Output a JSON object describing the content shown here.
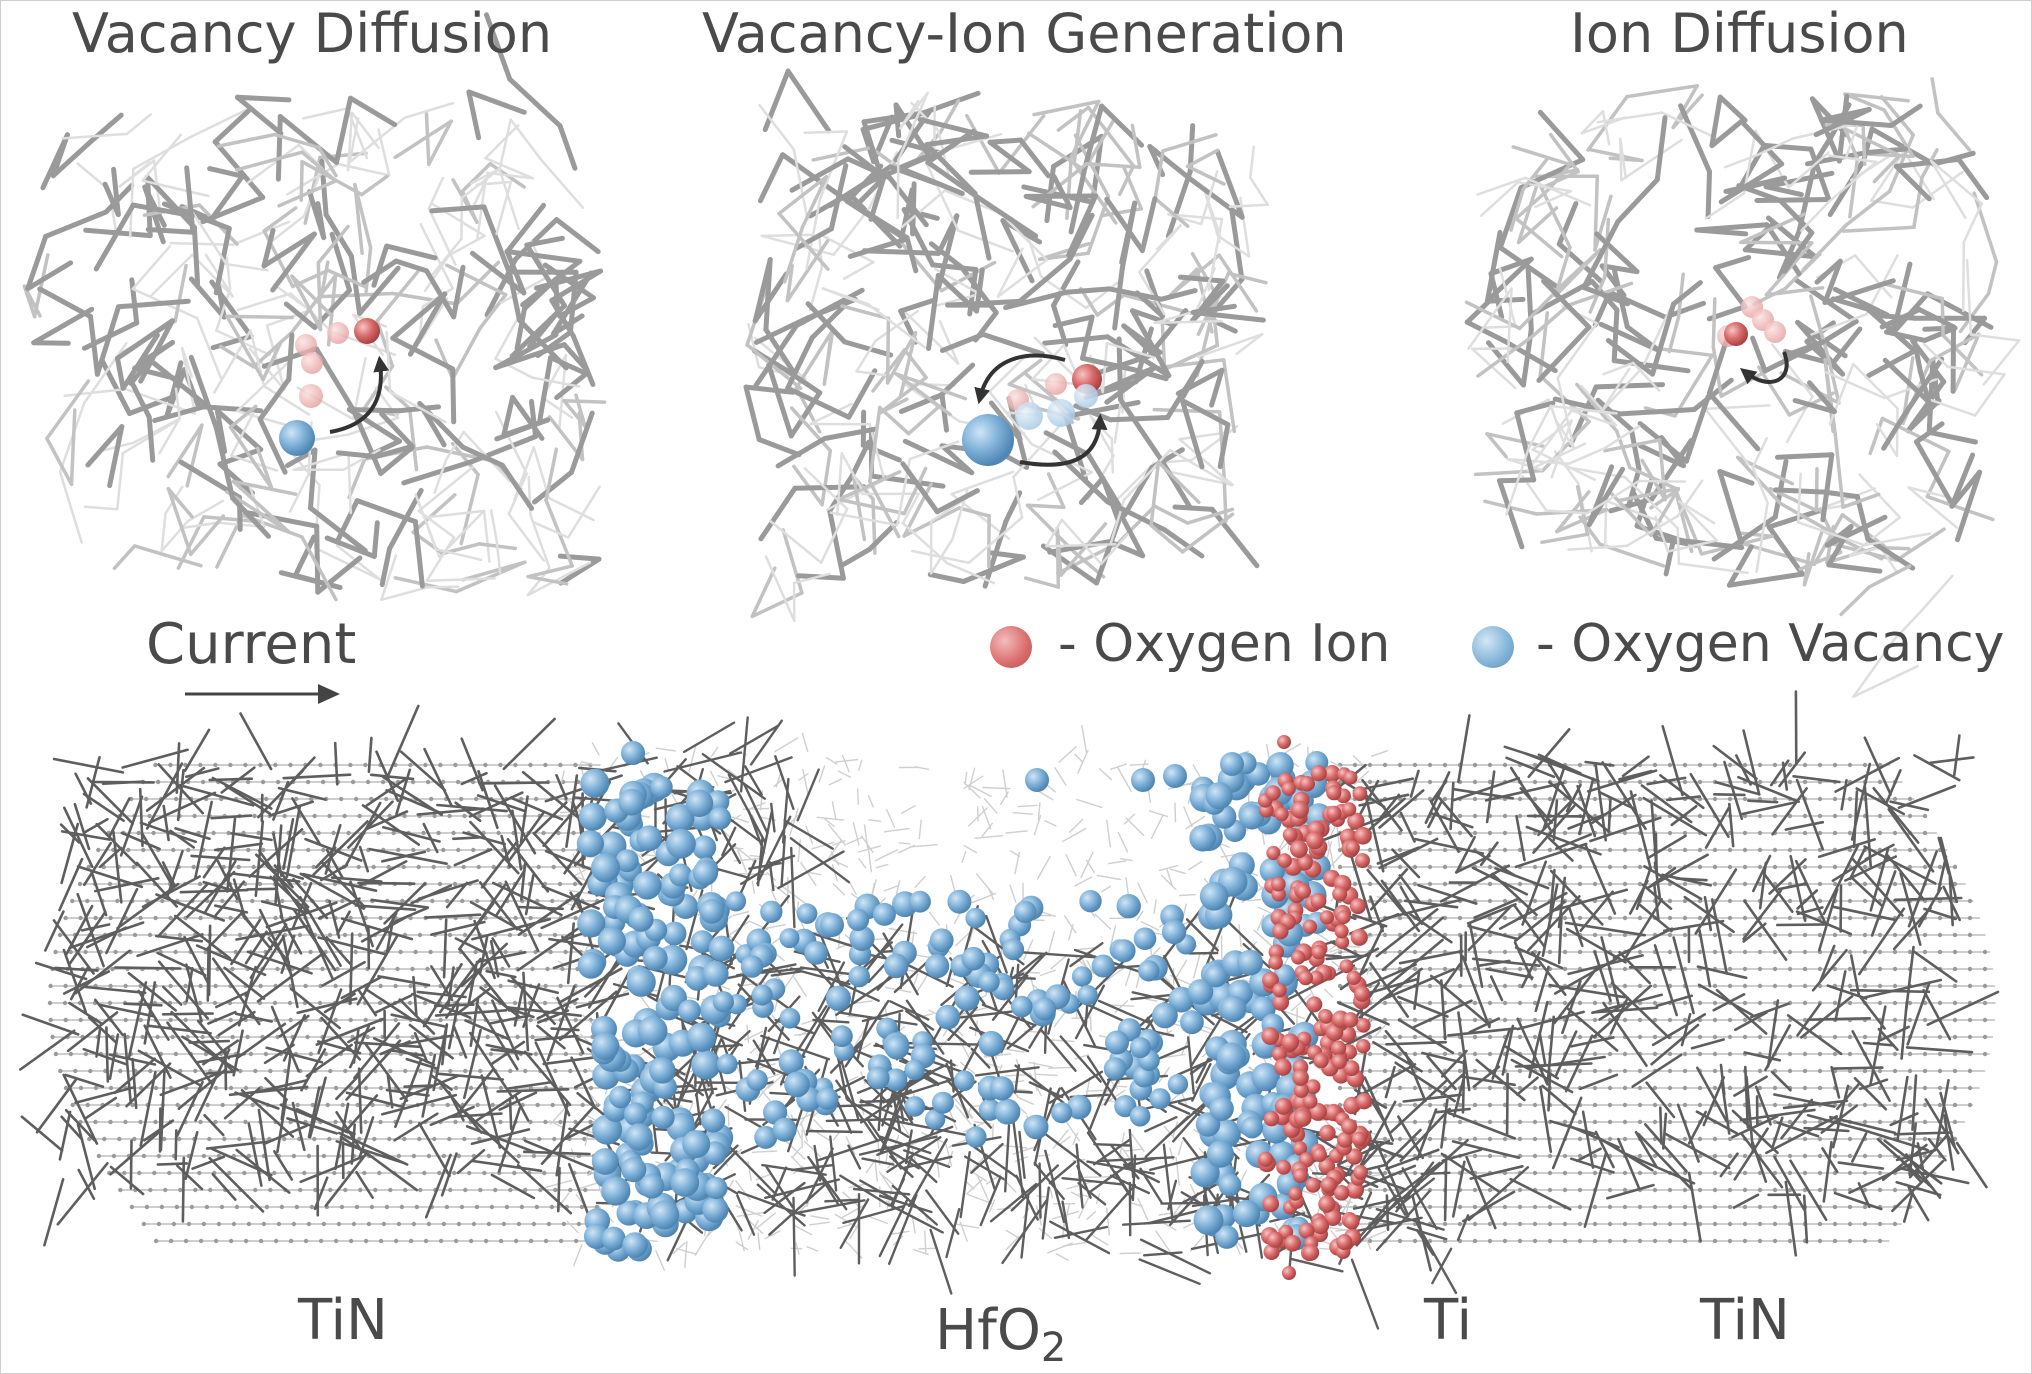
{
  "panels": [
    {
      "title": "Vacancy Diffusion"
    },
    {
      "title": "Vacancy-Ion Generation"
    },
    {
      "title": "Ion Diffusion"
    }
  ],
  "current_label": "Current",
  "legend": {
    "ion_label": "- Oxygen Ion",
    "vacancy_label": "- Oxygen Vacancy",
    "ion_color": "#d96a6a",
    "vacancy_color": "#7fb1d8"
  },
  "materials": {
    "left_tin": "TiN",
    "hfo2_base": "HfO",
    "hfo2_sub": "2",
    "ti": "Ti",
    "right_tin": "TiN"
  },
  "colors": {
    "text": "#4a4a4a",
    "lattice_dark": "#5e5e5e",
    "lattice_light": "#c8c8c8",
    "arrow": "#333333"
  }
}
